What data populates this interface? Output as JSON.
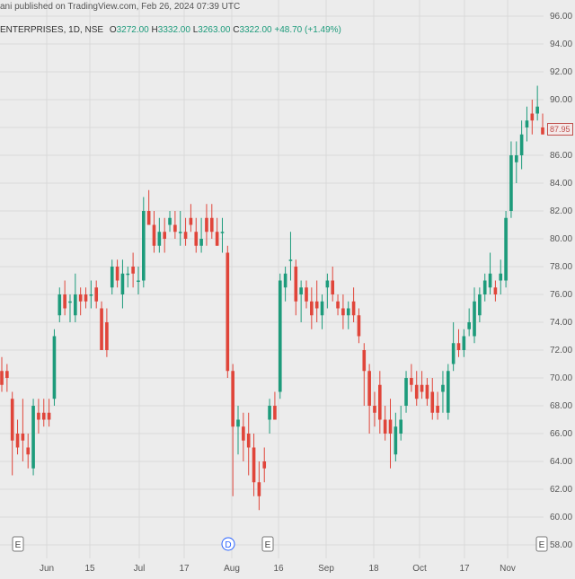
{
  "header": {
    "published_line": "ani published on TradingView.com, Feb 26, 2024 07:39 UTC",
    "symbol": "ENTERPRISES, 1D, NSE",
    "open_label": "O",
    "open": "3272.00",
    "high_label": "H",
    "high": "3332.00",
    "low_label": "L",
    "low": "3263.00",
    "close_label": "C",
    "close": "3322.00",
    "change": "+48.70 (+1.49%)"
  },
  "last_price_label": "87.95",
  "chart_data": {
    "type": "candlestick",
    "y_axis_ticks": [
      "96.00",
      "94.00",
      "92.00",
      "90.00",
      "88.00",
      "86.00",
      "84.00",
      "82.00",
      "80.00",
      "78.00",
      "76.00",
      "74.00",
      "72.00",
      "70.00",
      "68.00",
      "66.00",
      "64.00",
      "62.00",
      "60.00",
      "58.00"
    ],
    "ylim": [
      58,
      96
    ],
    "x_axis_ticks": [
      "Jun",
      "15",
      "Jul",
      "17",
      "Aug",
      "16",
      "Sep",
      "18",
      "Oct",
      "17",
      "Nov"
    ],
    "grid": true,
    "event_markers": [
      "E",
      "D",
      "E",
      "E"
    ],
    "colors": {
      "up": "#1d9b7b",
      "down": "#e0453a",
      "grid": "#dadada",
      "axis_text": "#555555"
    },
    "candles": [
      [
        70.5,
        71.5,
        69.0,
        69.5
      ],
      [
        70.5,
        71.0,
        69.0,
        70.0
      ],
      [
        68.5,
        69.0,
        63.0,
        65.5
      ],
      [
        66.0,
        67.0,
        64.5,
        65.0
      ],
      [
        66.0,
        68.5,
        64.0,
        65.5
      ],
      [
        65.0,
        66.0,
        63.5,
        64.5
      ],
      [
        63.5,
        68.5,
        63.0,
        68.0
      ],
      [
        67.5,
        68.5,
        66.0,
        67.0
      ],
      [
        67.5,
        68.5,
        66.5,
        67.0
      ],
      [
        67.5,
        68.5,
        66.5,
        67.0
      ],
      [
        68.5,
        73.5,
        68.0,
        73.0
      ],
      [
        74.5,
        76.5,
        74.0,
        76.0
      ],
      [
        76.0,
        77.0,
        74.5,
        75.0
      ],
      [
        75.5,
        76.0,
        74.0,
        75.5
      ],
      [
        74.5,
        77.5,
        74.0,
        76.0
      ],
      [
        76.0,
        76.5,
        74.5,
        75.5
      ],
      [
        76.0,
        76.5,
        75.0,
        75.5
      ],
      [
        76.0,
        77.0,
        75.0,
        76.0
      ],
      [
        76.5,
        77.0,
        75.0,
        75.5
      ],
      [
        75.0,
        75.5,
        72.0,
        72.0
      ],
      [
        74.0,
        75.0,
        71.5,
        72.0
      ],
      [
        76.5,
        78.5,
        76.0,
        78.0
      ],
      [
        78.0,
        78.5,
        76.5,
        77.0
      ],
      [
        76.0,
        78.5,
        75.0,
        77.5
      ],
      [
        77.5,
        78.0,
        76.5,
        77.5
      ],
      [
        78.0,
        79.0,
        76.5,
        77.5
      ],
      [
        77.0,
        78.0,
        76.0,
        77.0
      ],
      [
        77.0,
        83.0,
        76.5,
        82.0
      ],
      [
        82.0,
        83.5,
        81.0,
        81.0
      ],
      [
        81.0,
        82.0,
        79.0,
        79.5
      ],
      [
        79.5,
        81.5,
        79.0,
        80.5
      ],
      [
        80.5,
        81.5,
        79.0,
        80.0
      ],
      [
        81.0,
        82.0,
        80.5,
        81.5
      ],
      [
        81.0,
        82.0,
        80.0,
        80.5
      ],
      [
        80.5,
        82.0,
        79.5,
        80.5
      ],
      [
        80.5,
        81.5,
        79.5,
        80.0
      ],
      [
        81.5,
        82.5,
        80.5,
        81.0
      ],
      [
        80.5,
        81.5,
        79.0,
        79.5
      ],
      [
        79.5,
        81.5,
        79.0,
        80.0
      ],
      [
        81.5,
        82.5,
        79.5,
        80.5
      ],
      [
        81.5,
        82.5,
        80.0,
        80.5
      ],
      [
        80.5,
        81.5,
        79.5,
        79.5
      ],
      [
        80.5,
        81.5,
        79.0,
        80.5
      ],
      [
        79.0,
        79.5,
        70.0,
        70.5
      ],
      [
        70.5,
        71.0,
        61.5,
        66.5
      ],
      [
        66.5,
        68.0,
        64.5,
        67.0
      ],
      [
        66.5,
        67.5,
        64.0,
        65.5
      ],
      [
        66.0,
        67.5,
        63.0,
        65.0
      ],
      [
        65.0,
        66.0,
        61.5,
        62.5
      ],
      [
        62.5,
        64.0,
        60.5,
        61.5
      ],
      [
        64.0,
        65.0,
        62.5,
        63.5
      ],
      [
        67.0,
        68.5,
        66.0,
        68.0
      ],
      [
        68.0,
        69.0,
        67.0,
        67.0
      ],
      [
        69.0,
        77.5,
        68.5,
        77.0
      ],
      [
        76.5,
        78.0,
        75.5,
        77.5
      ],
      [
        78.5,
        80.5,
        77.0,
        78.5
      ],
      [
        78.0,
        78.5,
        74.5,
        75.5
      ],
      [
        76.0,
        77.0,
        74.0,
        76.5
      ],
      [
        76.5,
        77.0,
        75.0,
        75.5
      ],
      [
        75.5,
        76.5,
        73.5,
        74.5
      ],
      [
        75.5,
        77.0,
        74.0,
        75.0
      ],
      [
        74.5,
        76.0,
        73.5,
        75.5
      ],
      [
        76.5,
        77.5,
        75.0,
        77.0
      ],
      [
        77.0,
        78.0,
        75.5,
        76.0
      ],
      [
        75.5,
        76.0,
        74.5,
        75.0
      ],
      [
        75.0,
        76.0,
        73.5,
        74.5
      ],
      [
        74.5,
        75.5,
        73.5,
        75.0
      ],
      [
        75.5,
        76.5,
        74.0,
        74.5
      ],
      [
        74.5,
        75.0,
        72.5,
        73.0
      ],
      [
        72.0,
        72.5,
        68.0,
        70.5
      ],
      [
        70.5,
        71.0,
        66.0,
        68.0
      ],
      [
        68.0,
        69.0,
        66.5,
        67.5
      ],
      [
        69.5,
        70.5,
        66.0,
        67.0
      ],
      [
        67.0,
        68.0,
        65.5,
        66.0
      ],
      [
        67.0,
        68.5,
        63.5,
        66.0
      ],
      [
        64.5,
        67.5,
        64.0,
        66.5
      ],
      [
        66.0,
        68.0,
        65.5,
        67.0
      ],
      [
        68.0,
        70.5,
        67.5,
        70.0
      ],
      [
        70.0,
        71.0,
        69.0,
        69.5
      ],
      [
        69.5,
        70.5,
        68.0,
        68.5
      ],
      [
        69.5,
        70.5,
        68.5,
        69.0
      ],
      [
        69.5,
        70.0,
        68.0,
        68.5
      ],
      [
        69.0,
        70.0,
        67.0,
        67.5
      ],
      [
        68.0,
        69.0,
        67.0,
        67.5
      ],
      [
        69.0,
        70.5,
        67.5,
        69.5
      ],
      [
        67.5,
        71.0,
        67.0,
        70.5
      ],
      [
        71.0,
        74.0,
        70.5,
        72.5
      ],
      [
        72.5,
        73.5,
        71.5,
        72.0
      ],
      [
        72.0,
        73.5,
        71.5,
        73.0
      ],
      [
        73.5,
        75.0,
        73.0,
        74.0
      ],
      [
        73.0,
        76.5,
        72.5,
        75.5
      ],
      [
        74.5,
        76.5,
        74.0,
        76.0
      ],
      [
        76.0,
        77.5,
        75.5,
        77.0
      ],
      [
        76.5,
        79.0,
        76.0,
        77.5
      ],
      [
        76.5,
        77.0,
        75.5,
        76.0
      ],
      [
        77.0,
        78.5,
        76.0,
        77.5
      ],
      [
        77.0,
        82.0,
        76.5,
        81.5
      ],
      [
        82.0,
        87.0,
        81.5,
        86.0
      ],
      [
        85.5,
        87.0,
        84.0,
        86.0
      ],
      [
        86.0,
        88.5,
        85.0,
        87.5
      ],
      [
        88.0,
        89.5,
        87.0,
        88.5
      ],
      [
        89.0,
        90.0,
        87.5,
        88.5
      ],
      [
        89.0,
        91.0,
        88.5,
        89.5
      ],
      [
        88.0,
        89.0,
        87.5,
        87.5
      ]
    ]
  }
}
